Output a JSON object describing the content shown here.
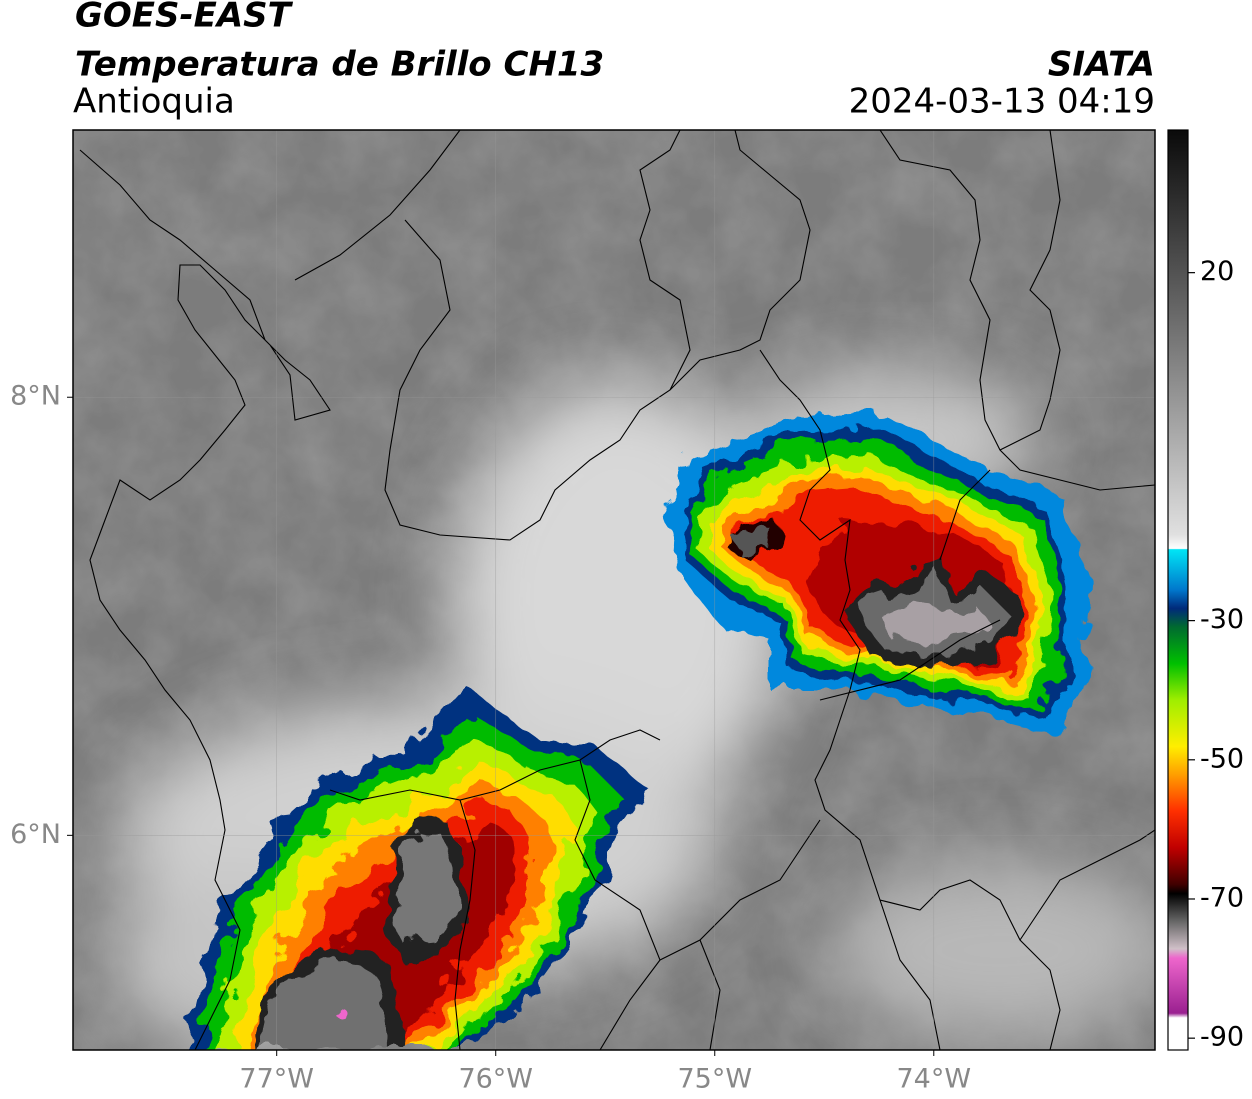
{
  "map": {
    "title": "GOES-EAST",
    "subtitle": "Temperatura de Brillo CH13",
    "region": "Antioquia",
    "source": "SIATA",
    "timestamp": "2024-03-13 04:19",
    "lonlim": [
      -77.93,
      -72.99
    ],
    "latlim": [
      5.02,
      9.22
    ],
    "lon_ticks": [
      {
        "value": -77,
        "label": "77°W"
      },
      {
        "value": -76,
        "label": "76°W"
      },
      {
        "value": -75,
        "label": "75°W"
      },
      {
        "value": -74,
        "label": "74°W"
      }
    ],
    "lat_ticks": [
      {
        "value": 8,
        "label": "8°N"
      },
      {
        "value": 6,
        "label": "6°N"
      }
    ],
    "grid": true,
    "colorbar": {
      "lim": [
        -91.7,
        40.5
      ],
      "ticks": [
        20,
        -30,
        -50,
        -70,
        -90
      ]
    }
  }
}
